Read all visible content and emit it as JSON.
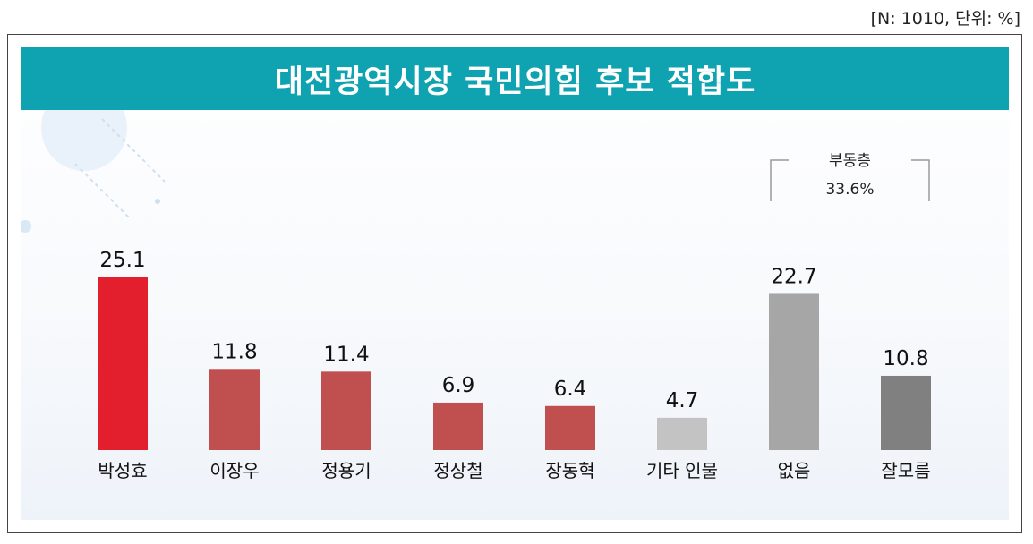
{
  "note": "[N: 1010, 단위: %]",
  "chart_data": {
    "type": "bar",
    "title": "대전광역시장 국민의힘 후보 적합도",
    "categories": [
      "박성효",
      "이장우",
      "정용기",
      "정상철",
      "장동혁",
      "기타 인물",
      "없음",
      "잘모름"
    ],
    "values": [
      25.1,
      11.8,
      11.4,
      6.9,
      6.4,
      4.7,
      22.7,
      10.8
    ],
    "value_labels": [
      "25.1",
      "11.8",
      "11.4",
      "6.9",
      "6.4",
      "4.7",
      "22.7",
      "10.8"
    ],
    "colors": [
      "#e31e2d",
      "#c0504f",
      "#c0504f",
      "#c0504f",
      "#c0504f",
      "#c3c3c3",
      "#a6a6a6",
      "#808080"
    ],
    "ylim": [
      0,
      25.1
    ],
    "grid": false,
    "annotation": {
      "label": "부동층",
      "value": "33.6%",
      "spans": [
        "없음",
        "잘모름"
      ]
    }
  }
}
